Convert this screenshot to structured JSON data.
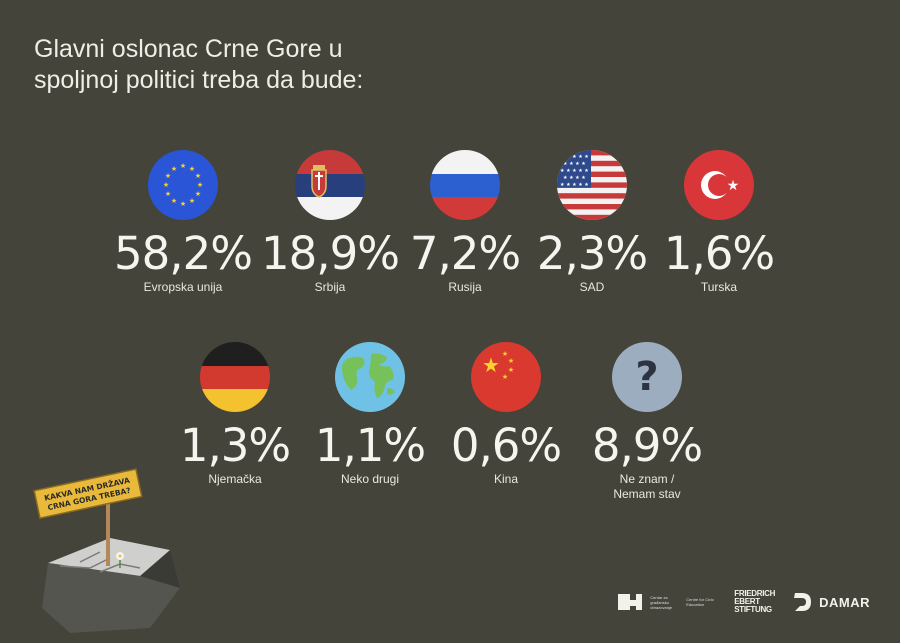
{
  "title": "Glavni oslonac Crne Gore u\nspoljnoj politici treba da bude:",
  "chart_data": {
    "type": "table",
    "categories": [
      "Evropska unija",
      "Srbija",
      "Rusija",
      "SAD",
      "Turska",
      "Njemačka",
      "Neko drugi",
      "Kina",
      "Ne znam / Nemam stav"
    ],
    "values": [
      58.2,
      18.9,
      7.2,
      2.3,
      1.6,
      1.3,
      1.1,
      0.6,
      8.9
    ]
  },
  "items": [
    {
      "pct": "58,2%",
      "label": "Evropska unija",
      "icon": "eu-flag-icon"
    },
    {
      "pct": "18,9%",
      "label": "Srbija",
      "icon": "serbia-flag-icon"
    },
    {
      "pct": "7,2%",
      "label": "Rusija",
      "icon": "russia-flag-icon"
    },
    {
      "pct": "2,3%",
      "label": "SAD",
      "icon": "usa-flag-icon"
    },
    {
      "pct": "1,6%",
      "label": "Turska",
      "icon": "turkey-flag-icon"
    },
    {
      "pct": "1,3%",
      "label": "Njemačka",
      "icon": "germany-flag-icon"
    },
    {
      "pct": "1,1%",
      "label": "Neko drugi",
      "icon": "globe-icon"
    },
    {
      "pct": "0,6%",
      "label": "Kina",
      "icon": "china-flag-icon"
    },
    {
      "pct": "8,9%",
      "label": "Ne znam /\nNemam stav",
      "icon": "question-mark-icon"
    }
  ],
  "sign": {
    "line1": "KAKVA NAM DRŽAVA",
    "line2": "CRNA GORA TREBA?"
  },
  "logos": {
    "cce_text": "Centar za građansko obrazovanje",
    "cce_text_en": "Centre for Civic Education",
    "fes_line1": "FRIEDRICH",
    "fes_line2": "EBERT",
    "fes_line3": "STIFTUNG",
    "damar": "DAMAR"
  },
  "colors": {
    "background": "#45443a",
    "text": "#f2f1ea",
    "sign": "#e8b93a"
  }
}
